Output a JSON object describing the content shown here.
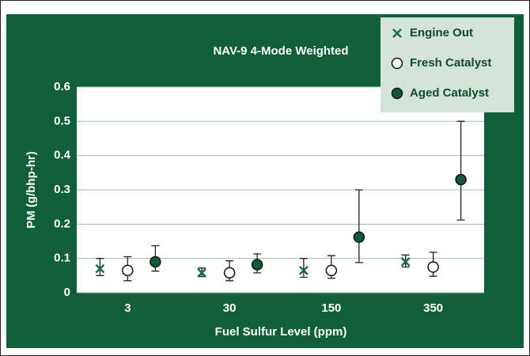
{
  "chart_data": {
    "type": "scatter",
    "title": "NAV-9 4-Mode Weighted",
    "x_label": "Fuel Sulfur Level (ppm)",
    "y_label": "PM (g/bhp-hr)",
    "categories": [
      "3",
      "30",
      "150",
      "350"
    ],
    "series": [
      {
        "name": "Engine Out",
        "color": "#1b6b46",
        "marker": "x",
        "values": [
          0.07,
          0.058,
          0.065,
          0.09
        ],
        "lower": [
          0.05,
          0.047,
          0.045,
          0.075
        ],
        "upper": [
          0.1,
          0.072,
          0.1,
          0.11
        ]
      },
      {
        "name": "Fresh Catalyst",
        "color": "#ffffff",
        "marker": "circle",
        "values": [
          0.065,
          0.058,
          0.065,
          0.075
        ],
        "lower": [
          0.035,
          0.035,
          0.042,
          0.048
        ],
        "upper": [
          0.105,
          0.093,
          0.108,
          0.118
        ]
      },
      {
        "name": "Aged Catalyst",
        "color": "#0f5a37",
        "marker": "circle",
        "values": [
          0.09,
          0.082,
          0.162,
          0.33
        ],
        "lower": [
          0.063,
          0.058,
          0.088,
          0.212
        ],
        "upper": [
          0.137,
          0.113,
          0.3,
          0.5
        ]
      }
    ],
    "ylim": [
      0,
      0.6
    ],
    "yticks": [
      0,
      0.1,
      0.2,
      0.3,
      0.4,
      0.5,
      0.6
    ],
    "grid": true,
    "legend": "upper-right"
  }
}
